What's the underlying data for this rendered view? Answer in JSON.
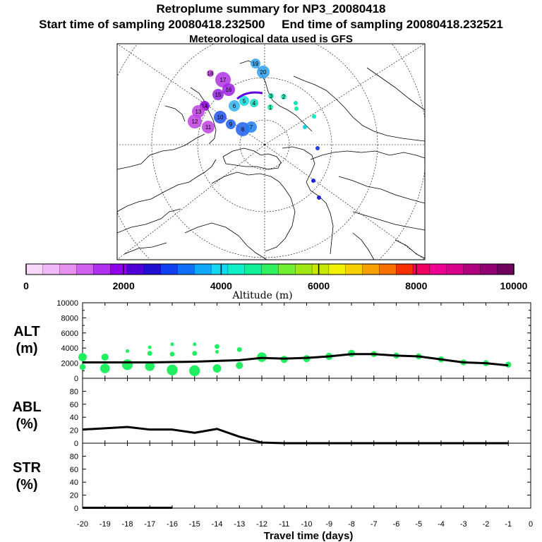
{
  "header": {
    "title": "Retroplume summary for NP3_20080418",
    "start_label": "Start time of sampling 20080418.232500",
    "end_label": "End time of sampling 20080418.232521",
    "met_label": "Meteorological data used is GFS"
  },
  "map": {
    "cluster_labels": [
      "19",
      "20",
      "18",
      "17",
      "16",
      "15",
      "14",
      "13",
      "12",
      "11",
      "10",
      "9",
      "8",
      "7",
      "6",
      "5",
      "4",
      "3",
      "2",
      "1"
    ]
  },
  "colorbar": {
    "tick_labels": [
      "0",
      "2000",
      "4000",
      "6000",
      "8000",
      "10000"
    ],
    "title": "Altitude (m)",
    "colors": [
      "#f8d8f8",
      "#f0b8f8",
      "#e890f0",
      "#d060f0",
      "#b030f0",
      "#9000e8",
      "#5000d8",
      "#2010d0",
      "#1040f0",
      "#1070f8",
      "#10a8f8",
      "#10d8f0",
      "#10f0c8",
      "#10f098",
      "#30f060",
      "#70f030",
      "#a0e810",
      "#c8e800",
      "#f0f000",
      "#f8d000",
      "#f8a000",
      "#f87000",
      "#f83000",
      "#f00060",
      "#f00090",
      "#d8008a",
      "#b00080",
      "#900070",
      "#700060"
    ]
  },
  "chart_data": [
    {
      "type": "line",
      "name": "ALT",
      "ylabel_line1": "ALT",
      "ylabel_line2": "(m)",
      "ylim": [
        0,
        10000
      ],
      "yticks": [
        "0",
        "2000",
        "4000",
        "6000",
        "8000",
        "10000"
      ],
      "x": [
        -20,
        -19,
        -18,
        -17,
        -16,
        -15,
        -14,
        -13,
        -12,
        -11,
        -10,
        -9,
        -8,
        -7,
        -6,
        -5,
        -4,
        -3,
        -2,
        -1
      ],
      "series": [
        {
          "name": "mean altitude",
          "values": [
            2100,
            2100,
            2100,
            2100,
            2150,
            2200,
            2300,
            2400,
            2700,
            2600,
            2700,
            2900,
            3200,
            3200,
            3000,
            2900,
            2500,
            2100,
            2000,
            1700
          ]
        }
      ],
      "clusters": [
        {
          "x": -20,
          "y": 2800,
          "size": 7
        },
        {
          "x": -20,
          "y": 1500,
          "size": 5
        },
        {
          "x": -19,
          "y": 2800,
          "size": 6
        },
        {
          "x": -19,
          "y": 1300,
          "size": 8
        },
        {
          "x": -18,
          "y": 3600,
          "size": 3
        },
        {
          "x": -18,
          "y": 1800,
          "size": 9
        },
        {
          "x": -17,
          "y": 4100,
          "size": 3
        },
        {
          "x": -17,
          "y": 3300,
          "size": 4
        },
        {
          "x": -17,
          "y": 1600,
          "size": 8
        },
        {
          "x": -16,
          "y": 4500,
          "size": 3
        },
        {
          "x": -16,
          "y": 3200,
          "size": 4
        },
        {
          "x": -16,
          "y": 1100,
          "size": 9
        },
        {
          "x": -15,
          "y": 4500,
          "size": 3
        },
        {
          "x": -15,
          "y": 3300,
          "size": 4
        },
        {
          "x": -15,
          "y": 1000,
          "size": 9
        },
        {
          "x": -14,
          "y": 4200,
          "size": 4
        },
        {
          "x": -14,
          "y": 3500,
          "size": 3
        },
        {
          "x": -14,
          "y": 1300,
          "size": 7
        },
        {
          "x": -13,
          "y": 3800,
          "size": 4
        },
        {
          "x": -13,
          "y": 1700,
          "size": 6
        },
        {
          "x": -12,
          "y": 2800,
          "size": 8
        },
        {
          "x": -11,
          "y": 2500,
          "size": 6
        },
        {
          "x": -10,
          "y": 2600,
          "size": 6
        },
        {
          "x": -9,
          "y": 2900,
          "size": 6
        },
        {
          "x": -8,
          "y": 3300,
          "size": 6
        },
        {
          "x": -7,
          "y": 3200,
          "size": 5
        },
        {
          "x": -6,
          "y": 3000,
          "size": 5
        },
        {
          "x": -5,
          "y": 2900,
          "size": 5
        },
        {
          "x": -4,
          "y": 2500,
          "size": 5
        },
        {
          "x": -3,
          "y": 2100,
          "size": 5
        },
        {
          "x": -2,
          "y": 2000,
          "size": 5
        },
        {
          "x": -1,
          "y": 1800,
          "size": 5
        }
      ]
    },
    {
      "type": "line",
      "name": "ABL",
      "ylabel_line1": "ABL",
      "ylabel_line2": "(%)",
      "ylim": [
        0,
        100
      ],
      "yticks": [
        "0",
        "20",
        "40",
        "60",
        "80"
      ],
      "x": [
        -20,
        -19,
        -18,
        -17,
        -16,
        -15,
        -14,
        -13,
        -12,
        -11,
        -10,
        -9,
        -8,
        -7,
        -6,
        -5,
        -4,
        -3,
        -2,
        -1
      ],
      "series": [
        {
          "name": "ABL fraction",
          "values": [
            21,
            23,
            25,
            21,
            21,
            16,
            22,
            10,
            1,
            0,
            0,
            0,
            0,
            0,
            0,
            0,
            0,
            0,
            0,
            0
          ]
        }
      ]
    },
    {
      "type": "line",
      "name": "STR",
      "ylabel_line1": "STR",
      "ylabel_line2": "(%)",
      "ylim": [
        0,
        100
      ],
      "yticks": [
        "0",
        "20",
        "40",
        "60",
        "80"
      ],
      "x": [
        -20,
        -19,
        -18,
        -17,
        -16
      ],
      "series": [
        {
          "name": "stratosphere fraction",
          "values": [
            0.5,
            0.5,
            0.5,
            0.5,
            0.5
          ]
        }
      ],
      "xlabel": "Travel time (days)",
      "xticks": [
        "-20",
        "-19",
        "-18",
        "-17",
        "-16",
        "-15",
        "-14",
        "-13",
        "-12",
        "-11",
        "-10",
        "-9",
        "-8",
        "-7",
        "-6",
        "-5",
        "-4",
        "-3",
        "-2",
        "-1",
        "0"
      ]
    }
  ]
}
